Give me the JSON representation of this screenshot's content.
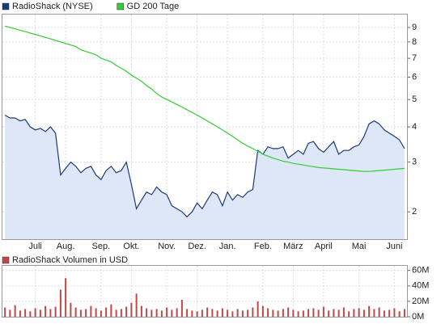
{
  "chart_data": [
    {
      "type": "line",
      "log": true,
      "grid": true,
      "categories": [
        null,
        null,
        null,
        null,
        null,
        null,
        "Juli",
        null,
        null,
        null,
        null,
        null,
        "Aug.",
        null,
        null,
        null,
        null,
        null,
        null,
        "Sep.",
        null,
        null,
        null,
        null,
        null,
        "Okt.",
        null,
        null,
        null,
        null,
        null,
        null,
        "Nov.",
        null,
        null,
        null,
        null,
        null,
        "Dez.",
        null,
        null,
        null,
        null,
        null,
        "Jan.",
        null,
        null,
        null,
        null,
        null,
        null,
        "Feb.",
        null,
        null,
        null,
        null,
        null,
        "März",
        null,
        null,
        null,
        null,
        null,
        "April",
        null,
        null,
        null,
        null,
        null,
        null,
        "Mai",
        null,
        null,
        null,
        null,
        null,
        null,
        "Juni",
        null,
        null
      ],
      "series": [
        {
          "name": "RadioShack (NYSE)",
          "color": "#1c3a78",
          "fill": "#dde7f8",
          "values": [
            4.4,
            4.3,
            4.3,
            4.2,
            4.25,
            4.0,
            3.9,
            3.95,
            3.85,
            4.0,
            3.8,
            2.7,
            2.85,
            3.0,
            2.9,
            2.75,
            2.85,
            2.9,
            2.7,
            2.6,
            2.8,
            2.9,
            2.75,
            2.8,
            3.0,
            2.5,
            2.05,
            2.2,
            2.35,
            2.3,
            2.45,
            2.35,
            2.3,
            2.1,
            2.05,
            2.0,
            1.92,
            2.0,
            2.15,
            2.05,
            2.2,
            2.35,
            2.3,
            2.1,
            2.35,
            2.2,
            2.3,
            2.25,
            2.35,
            2.4,
            3.3,
            3.2,
            3.4,
            3.35,
            3.35,
            3.4,
            3.1,
            3.2,
            3.3,
            3.2,
            3.5,
            3.55,
            3.35,
            3.25,
            3.4,
            3.55,
            3.2,
            3.3,
            3.3,
            3.4,
            3.45,
            3.7,
            4.1,
            4.2,
            4.1,
            3.9,
            3.8,
            3.7,
            3.6,
            3.35
          ]
        },
        {
          "name": "GD 200 Tage",
          "color": "#33cc33",
          "values": [
            9.1,
            9.0,
            8.9,
            8.8,
            8.7,
            8.6,
            8.5,
            8.4,
            8.3,
            8.2,
            8.1,
            8.0,
            7.9,
            7.8,
            7.7,
            7.5,
            7.4,
            7.3,
            7.2,
            7.0,
            6.9,
            6.8,
            6.6,
            6.45,
            6.3,
            6.1,
            5.95,
            5.8,
            5.6,
            5.45,
            5.25,
            5.1,
            5.0,
            4.9,
            4.8,
            4.7,
            4.6,
            4.5,
            4.4,
            4.3,
            4.2,
            4.1,
            4.0,
            3.9,
            3.8,
            3.7,
            3.6,
            3.5,
            3.42,
            3.35,
            3.28,
            3.2,
            3.15,
            3.1,
            3.06,
            3.02,
            3.0,
            2.97,
            2.95,
            2.93,
            2.91,
            2.89,
            2.87,
            2.86,
            2.85,
            2.84,
            2.83,
            2.82,
            2.81,
            2.8,
            2.79,
            2.78,
            2.78,
            2.79,
            2.8,
            2.81,
            2.82,
            2.83,
            2.84,
            2.85
          ]
        }
      ],
      "ylim": [
        1.6,
        10
      ],
      "yticks": [
        2,
        3,
        4,
        5,
        6,
        7,
        8,
        9
      ]
    },
    {
      "type": "bar",
      "grid": true,
      "series": [
        {
          "name": "RadioShack Volumen in USD",
          "color": "#c04848",
          "values": [
            12,
            9,
            15,
            8,
            10,
            7,
            11,
            9,
            14,
            10,
            13,
            35,
            50,
            18,
            12,
            9,
            10,
            14,
            11,
            8,
            12,
            16,
            9,
            10,
            13,
            18,
            30,
            14,
            11,
            9,
            10,
            8,
            12,
            9,
            11,
            22,
            10,
            8,
            7,
            9,
            12,
            10,
            8,
            11,
            9,
            7,
            10,
            8,
            9,
            12,
            20,
            14,
            11,
            9,
            8,
            10,
            12,
            9,
            7,
            8,
            10,
            11,
            9,
            13,
            8,
            10,
            9,
            12,
            7,
            10,
            11,
            9,
            14,
            10,
            12,
            8,
            9,
            11,
            7,
            10
          ]
        }
      ],
      "ylim": [
        0,
        66
      ],
      "yticks": [
        {
          "value": 0,
          "label": "0M"
        },
        {
          "value": 20,
          "label": "20M"
        },
        {
          "value": 40,
          "label": "40M"
        },
        {
          "value": 60,
          "label": "60M"
        }
      ]
    }
  ]
}
